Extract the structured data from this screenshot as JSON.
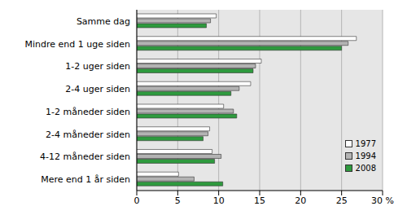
{
  "chart_data": {
    "type": "bar",
    "orientation": "horizontal",
    "categories": [
      "Samme dag",
      "Mindre end 1 uge siden",
      "1-2 uger siden",
      "2-4 uger siden",
      "1-2 måneder siden",
      "2-4 måneder siden",
      "4-12 måneder siden",
      "Mere end 1 år siden"
    ],
    "series": [
      {
        "name": "1977",
        "color": "#ffffff",
        "values": [
          9.7,
          26.8,
          15.2,
          13.9,
          10.6,
          8.9,
          9.2,
          5.1
        ]
      },
      {
        "name": "1994",
        "color": "#b3b3b3",
        "values": [
          9.0,
          25.8,
          14.5,
          12.5,
          11.8,
          8.7,
          10.3,
          7.0
        ]
      },
      {
        "name": "2008",
        "color": "#2e9a3e",
        "values": [
          8.5,
          25.0,
          14.2,
          11.5,
          12.2,
          8.1,
          9.5,
          10.5
        ]
      }
    ],
    "xlim": [
      0,
      30
    ],
    "xticks": [
      0,
      5,
      10,
      15,
      20,
      25,
      {
        "value": 30,
        "label": "30 %"
      }
    ],
    "grid": true,
    "legend": "lower right"
  }
}
